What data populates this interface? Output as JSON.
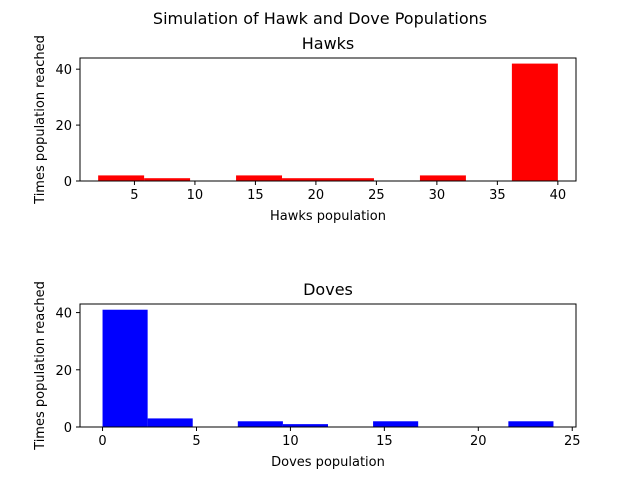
{
  "suptitle": "Simulation of Hawk and Dove Populations",
  "chart_data": [
    {
      "type": "bar",
      "title": "Hawks",
      "xlabel": "Hawks population",
      "ylabel": "Times population reached",
      "color": "#ff0000",
      "xlim": [
        0.5,
        41.5
      ],
      "ylim": [
        0,
        44
      ],
      "xticks": [
        5,
        10,
        15,
        20,
        25,
        30,
        35,
        40
      ],
      "yticks": [
        0,
        20,
        40
      ],
      "bins": [
        {
          "start": 2.0,
          "end": 5.8,
          "value": 2
        },
        {
          "start": 5.8,
          "end": 9.6,
          "value": 1
        },
        {
          "start": 9.6,
          "end": 13.4,
          "value": 0
        },
        {
          "start": 13.4,
          "end": 17.2,
          "value": 2
        },
        {
          "start": 17.2,
          "end": 21.0,
          "value": 1
        },
        {
          "start": 21.0,
          "end": 24.8,
          "value": 1
        },
        {
          "start": 24.8,
          "end": 28.6,
          "value": 0
        },
        {
          "start": 28.6,
          "end": 32.4,
          "value": 2
        },
        {
          "start": 32.4,
          "end": 36.2,
          "value": 0
        },
        {
          "start": 36.2,
          "end": 40.0,
          "value": 42
        }
      ]
    },
    {
      "type": "bar",
      "title": "Doves",
      "xlabel": "Doves population",
      "ylabel": "Times population reached",
      "color": "#0000ff",
      "xlim": [
        -1.2,
        25.2
      ],
      "ylim": [
        0,
        43
      ],
      "xticks": [
        0,
        5,
        10,
        15,
        20,
        25
      ],
      "yticks": [
        0,
        20,
        40
      ],
      "bins": [
        {
          "start": 0.0,
          "end": 2.4,
          "value": 41
        },
        {
          "start": 2.4,
          "end": 4.8,
          "value": 3
        },
        {
          "start": 4.8,
          "end": 7.2,
          "value": 0
        },
        {
          "start": 7.2,
          "end": 9.6,
          "value": 2
        },
        {
          "start": 9.6,
          "end": 12.0,
          "value": 1
        },
        {
          "start": 12.0,
          "end": 14.4,
          "value": 0
        },
        {
          "start": 14.4,
          "end": 16.8,
          "value": 2
        },
        {
          "start": 16.8,
          "end": 19.2,
          "value": 0
        },
        {
          "start": 19.2,
          "end": 21.6,
          "value": 0
        },
        {
          "start": 21.6,
          "end": 24.0,
          "value": 2
        }
      ]
    }
  ]
}
